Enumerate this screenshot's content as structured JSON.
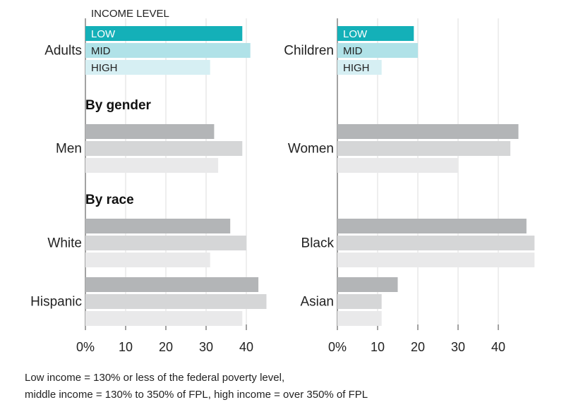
{
  "chart_data": {
    "type": "bar",
    "orientation": "horizontal",
    "legend_title": "INCOME LEVEL",
    "series": [
      {
        "name": "LOW",
        "color": "#14b0b8"
      },
      {
        "name": "MID",
        "color": "#b0e2e8"
      },
      {
        "name": "HIGH",
        "color": "#d6eff3"
      }
    ],
    "gray_colors": [
      "#b3b5b7",
      "#d5d6d7",
      "#e9e9ea"
    ],
    "xlim": [
      0,
      49
    ],
    "ticks": [
      "0%",
      "10",
      "20",
      "30",
      "40"
    ],
    "tick_values": [
      0,
      10,
      20,
      30,
      40
    ],
    "sections": [
      {
        "title": ""
      },
      {
        "title": "By gender"
      },
      {
        "title": "By race"
      }
    ],
    "groups": [
      {
        "label": "Adults",
        "values": [
          39,
          41,
          31
        ]
      },
      {
        "label": "Children",
        "values": [
          19,
          20,
          11
        ]
      },
      {
        "label": "Men",
        "values": [
          32,
          39,
          33
        ]
      },
      {
        "label": "Women",
        "values": [
          45,
          43,
          30
        ]
      },
      {
        "label": "White",
        "values": [
          36,
          40,
          31
        ]
      },
      {
        "label": "Black",
        "values": [
          47,
          49,
          49
        ]
      },
      {
        "label": "Hispanic",
        "values": [
          43,
          45,
          39
        ]
      },
      {
        "label": "Asian",
        "values": [
          15,
          11,
          11
        ]
      }
    ]
  },
  "footnote": {
    "line1": "Low income = 130% or less of the federal poverty level,",
    "line2": "middle income = 130% to 350% of FPL, high income = over 350% of FPL"
  }
}
